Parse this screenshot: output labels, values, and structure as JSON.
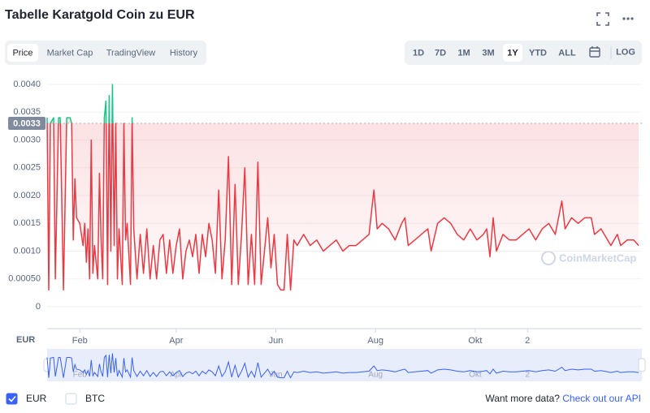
{
  "header": {
    "title": "Tabelle Karatgold Coin zu EUR"
  },
  "tabs": [
    "Price",
    "Market Cap",
    "TradingView",
    "History"
  ],
  "active_tab": 0,
  "ranges": [
    "1D",
    "7D",
    "1M",
    "3M",
    "1Y",
    "YTD",
    "ALL"
  ],
  "active_range": 4,
  "log_label": "LOG",
  "axis_currency": "EUR",
  "watermark": "CoinMarketCap",
  "currencies": [
    {
      "label": "EUR",
      "checked": true
    },
    {
      "label": "BTC",
      "checked": false
    }
  ],
  "footer": {
    "prompt": "Want more data?",
    "link": "Check out our API"
  },
  "chart_data": {
    "type": "line",
    "reference_value": 0.0033,
    "up_color": "#16c784",
    "down_color": "#ea3943",
    "navigator_color": "#3861fb",
    "grid": true,
    "xlim": [
      11,
      375
    ],
    "xticks": [
      {
        "value": 31,
        "label": "Feb"
      },
      {
        "value": 90,
        "label": "Apr"
      },
      {
        "value": 151,
        "label": "Jun"
      },
      {
        "value": 212,
        "label": "Aug"
      },
      {
        "value": 273,
        "label": "Okt"
      },
      {
        "value": 305,
        "label": "2"
      }
    ],
    "ylim": [
      0,
      0.0042
    ],
    "yticks": [
      0,
      {
        "value": 0.0005,
        "label": "0.00050"
      },
      {
        "value": 0.001,
        "label": "0.0010"
      },
      0.0015,
      {
        "value": 0.002,
        "label": "0.0020"
      },
      0.0025,
      {
        "value": 0.003,
        "label": "0.0030"
      },
      0.0035,
      {
        "value": 0.004,
        "label": "0.0040"
      }
    ],
    "x": [
      11,
      12,
      13,
      15,
      16,
      18,
      19,
      21,
      23,
      25,
      26,
      27,
      28,
      29,
      31,
      33,
      34,
      35,
      36,
      37,
      38,
      39,
      40,
      42,
      43,
      44,
      45,
      46,
      47,
      48,
      49,
      50,
      51,
      52,
      53,
      54,
      55,
      57,
      58,
      59,
      60,
      62,
      63,
      64,
      66,
      68,
      70,
      72,
      74,
      76,
      78,
      80,
      82,
      84,
      86,
      88,
      90,
      92,
      94,
      96,
      98,
      100,
      102,
      104,
      106,
      108,
      110,
      112,
      114,
      116,
      118,
      120,
      122,
      124,
      126,
      128,
      130,
      132,
      134,
      136,
      138,
      140,
      142,
      144,
      146,
      148,
      150,
      152,
      154,
      156,
      158,
      160,
      162,
      164,
      168,
      172,
      176,
      180,
      184,
      188,
      192,
      196,
      200,
      204,
      208,
      211,
      213,
      216,
      220,
      224,
      228,
      230,
      232,
      236,
      240,
      244,
      246,
      250,
      254,
      258,
      262,
      266,
      270,
      274,
      278,
      280,
      282,
      284,
      286,
      290,
      294,
      298,
      302,
      306,
      310,
      314,
      318,
      322,
      326,
      328,
      332,
      336,
      340,
      344,
      346,
      350,
      354,
      356,
      360,
      362,
      366,
      370,
      373
    ],
    "values": [
      0.0034,
      0.0003,
      0.0033,
      0.0034,
      0.0005,
      0.0034,
      0.0034,
      0.0003,
      0.0034,
      0.0034,
      0.0033,
      0.0012,
      0.0023,
      0.0016,
      0.0015,
      0.0011,
      0.0015,
      0.0008,
      0.0014,
      0.0005,
      0.003,
      0.0006,
      0.0011,
      0.0005,
      0.0024,
      0.0012,
      0.0005,
      0.0034,
      0.0037,
      0.0004,
      0.0038,
      0.001,
      0.004,
      0.0011,
      0.0033,
      0.0005,
      0.0014,
      0.0004,
      0.0033,
      0.0012,
      0.0015,
      0.0004,
      0.0034,
      0.0014,
      0.0005,
      0.0013,
      0.0006,
      0.0014,
      0.0005,
      0.0011,
      0.0005,
      0.0012,
      0.0013,
      0.0006,
      0.0012,
      0.0006,
      0.0011,
      0.0014,
      0.0005,
      0.001,
      0.0012,
      0.0009,
      0.0013,
      0.0006,
      0.0013,
      0.0009,
      0.0015,
      0.0012,
      0.0006,
      0.0021,
      0.0005,
      0.0012,
      0.0027,
      0.0004,
      0.0022,
      0.0004,
      0.0013,
      0.0025,
      0.0004,
      0.0013,
      0.0004,
      0.0026,
      0.0004,
      0.001,
      0.0016,
      0.0007,
      0.0013,
      0.0004,
      0.0003,
      0.0003,
      0.0013,
      0.0003,
      0.0012,
      0.0011,
      0.0013,
      0.0011,
      0.0012,
      0.001,
      0.0011,
      0.0012,
      0.001,
      0.0011,
      0.0011,
      0.0012,
      0.0013,
      0.0021,
      0.0014,
      0.0015,
      0.0014,
      0.0012,
      0.0015,
      0.0016,
      0.0011,
      0.0012,
      0.0013,
      0.0014,
      0.001,
      0.0015,
      0.0016,
      0.0015,
      0.0013,
      0.0012,
      0.0014,
      0.0012,
      0.0013,
      0.0014,
      0.0009,
      0.0016,
      0.001,
      0.0013,
      0.0012,
      0.0012,
      0.0013,
      0.0014,
      0.0012,
      0.0014,
      0.0015,
      0.0013,
      0.0019,
      0.0014,
      0.0016,
      0.0015,
      0.0016,
      0.0016,
      0.0013,
      0.0014,
      0.0012,
      0.0011,
      0.0013,
      0.0011,
      0.0012,
      0.0012,
      0.0011
    ]
  }
}
